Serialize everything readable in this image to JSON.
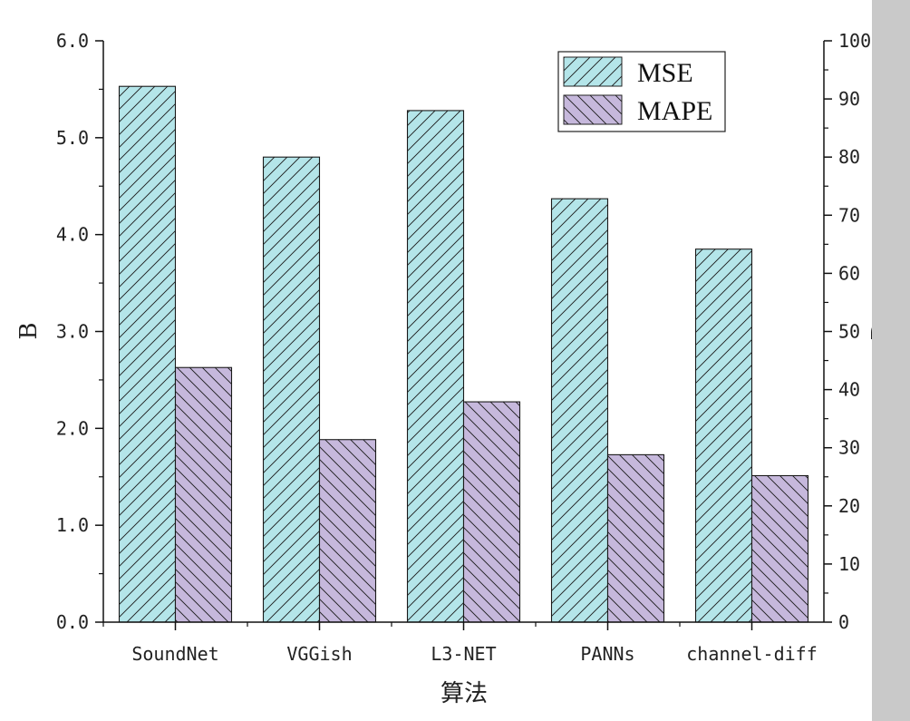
{
  "chart_data": {
    "type": "bar",
    "categories": [
      "SoundNet",
      "VGGish",
      "L3-NET",
      "PANNs",
      "channel-diff"
    ],
    "series": [
      {
        "name": "MSE",
        "axis": "left",
        "values": [
          5.53,
          4.8,
          5.28,
          4.37,
          3.85
        ],
        "color": "#b4e5e9",
        "hatch": "forward-diagonal"
      },
      {
        "name": "MAPE",
        "axis": "right",
        "values": [
          43.8,
          31.4,
          37.9,
          28.8,
          25.2
        ],
        "color": "#c6b8dc",
        "hatch": "backward-diagonal"
      }
    ],
    "xlabel": "算法",
    "ylabel": "B",
    "y2label": "D",
    "ylim": [
      0,
      6
    ],
    "y2lim": [
      0,
      100
    ],
    "yticks": [
      "0.0",
      "1.0",
      "2.0",
      "3.0",
      "4.0",
      "5.0",
      "6.0"
    ],
    "y2ticks": [
      "0",
      "10",
      "20",
      "30",
      "40",
      "50",
      "60",
      "70",
      "80",
      "90",
      "100"
    ],
    "legend_position": "top-right",
    "grid": false
  }
}
